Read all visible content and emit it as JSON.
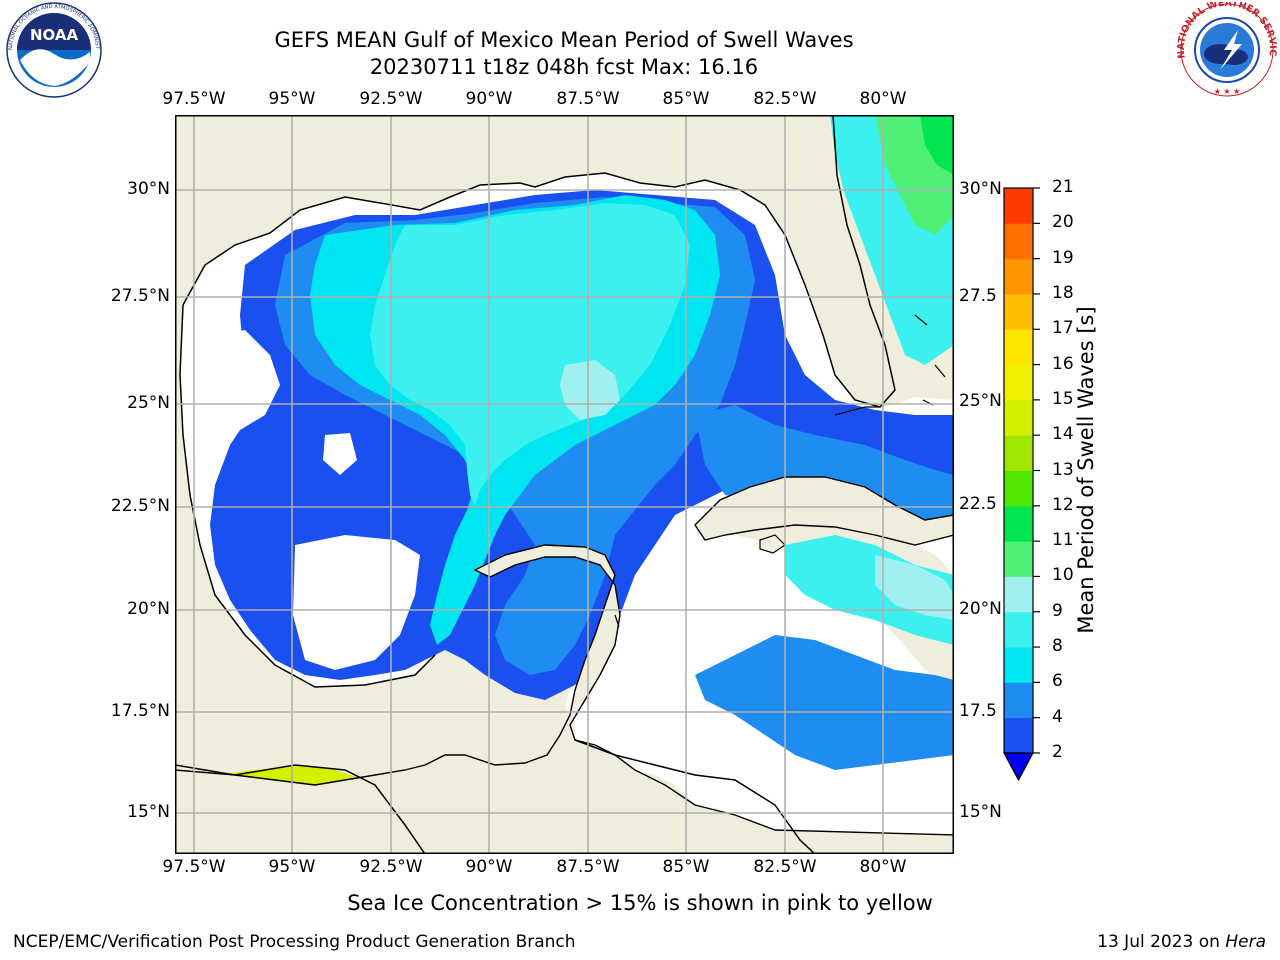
{
  "header": {
    "title_line1": "GEFS MEAN Gulf of Mexico Mean Period of Swell Waves",
    "title_line2": "20230711 t18z 048h fcst   Max: 16.16"
  },
  "logos": {
    "noara_text": "NOAA",
    "noaa_ring_text": "NATIONAL OCEANIC AND ATMOSPHERIC ADMINISTRATION · U.S. DEPARTMENT OF COMMERCE",
    "nws_ring_text": "NATIONAL WEATHER SERVICE"
  },
  "map": {
    "lon_labels": [
      "97.5°W",
      "95°W",
      "92.5°W",
      "90°W",
      "87.5°W",
      "85°W",
      "82.5°W",
      "80°W"
    ],
    "lat_labels_left": [
      "30°N",
      "27.5°N",
      "25°N",
      "22.5°N",
      "20°N",
      "17.5°N",
      "15°N"
    ],
    "lat_labels_right": [
      "30°N",
      "27.5",
      "25°N",
      "22.5",
      "20°N",
      "17.5",
      "15°N"
    ],
    "land_color": "#efeedc",
    "no_data_color": "#ffffff",
    "grid_color": "#b0b0b0"
  },
  "colorbar": {
    "label": "Mean Period of Swell Waves [s]",
    "ticks": [
      "2",
      "4",
      "6",
      "8",
      "9",
      "10",
      "11",
      "12",
      "13",
      "14",
      "15",
      "16",
      "17",
      "18",
      "19",
      "20",
      "21"
    ],
    "colors": [
      "#1a50f0",
      "#1e8cf0",
      "#00e6f0",
      "#3cf0f0",
      "#a0f0f0",
      "#50f078",
      "#00e650",
      "#50e600",
      "#a0e600",
      "#d2f000",
      "#f0f000",
      "#ffe600",
      "#ffbe00",
      "#ff9600",
      "#ff6e00",
      "#ff3c00",
      "#ff0000"
    ],
    "under_color": "#0000f0"
  },
  "footer": {
    "note": "Sea Ice Concentration > 15% is shown in pink to yellow",
    "credit": "NCEP/EMC/Verification Post Processing Product Generation Branch",
    "date": "13 Jul 2023 on ",
    "machine": "Hera"
  }
}
